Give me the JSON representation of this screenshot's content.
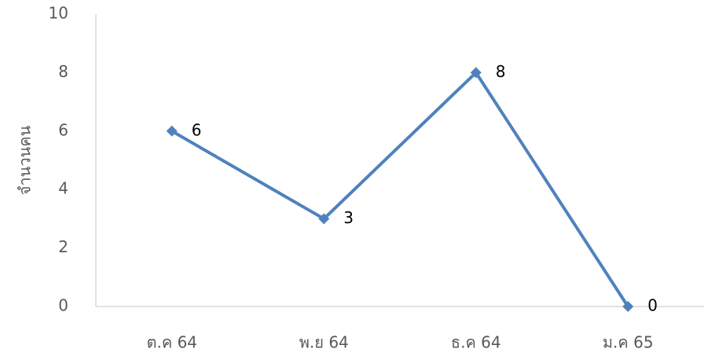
{
  "chart_data": {
    "type": "line",
    "ylabel": "จำนวนคน",
    "categories": [
      "ต.ค 64",
      "พ.ย 64",
      "ธ.ค 64",
      "ม.ค 65"
    ],
    "ylim": [
      0,
      10
    ],
    "y_ticks": [
      "0",
      "2",
      "4",
      "6",
      "8",
      "10"
    ],
    "grid": false,
    "series": [
      {
        "values": [
          6,
          3,
          8,
          0
        ],
        "color": "#4f81bd",
        "marker": "diamond",
        "data_labels": [
          "6",
          "3",
          "8",
          "0"
        ]
      }
    ]
  }
}
